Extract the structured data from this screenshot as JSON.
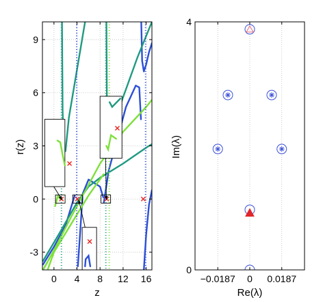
{
  "chart_data": [
    {
      "type": "line",
      "xlabel": "z",
      "ylabel": "r(z)",
      "xlim": [
        -2,
        17
      ],
      "ylim": [
        -4,
        10
      ],
      "xticks": [
        "0",
        "4",
        "8",
        "12",
        "16"
      ],
      "yticks": [
        "-3",
        "0",
        "3",
        "6",
        "9"
      ],
      "grid": "dotted",
      "colors": {
        "blue": "#2b4fd6",
        "teal": "#1f9a80",
        "lime": "#7ee03a",
        "marker": "#e8251f"
      },
      "series": [
        {
          "color": "blue",
          "segments": [
            [
              [
                -1.9,
                -3.7
              ],
              [
                0,
                -2.7
              ],
              [
                2,
                -1.5
              ],
              [
                3.6,
                0.2
              ]
            ],
            [
              [
                4.15,
                -3.8
              ],
              [
                5,
                0.3
              ],
              [
                6,
                1.1
              ],
              [
                8,
                0.7
              ],
              [
                8.55,
                0.1
              ]
            ],
            [
              [
                8.65,
                -0.2
              ],
              [
                9.5,
                1.6
              ],
              [
                11,
                3.4
              ],
              [
                12.5,
                5.2
              ],
              [
                14.2,
                6.4
              ],
              [
                14.8,
                6.3
              ],
              [
                15.1,
                4.5
              ]
            ],
            [
              [
                15.6,
                -4
              ],
              [
                16.0,
                -2.0
              ],
              [
                16.5,
                -0.3
              ],
              [
                17,
                0.5
              ]
            ],
            [
              [
                15.15,
                10
              ],
              [
                15.3,
                7.8
              ],
              [
                15.6,
                7.2
              ],
              [
                16,
                7.6
              ],
              [
                16.5,
                8.3
              ],
              [
                17,
                8.8
              ]
            ]
          ]
        },
        {
          "color": "teal",
          "segments": [
            [
              [
                -1.9,
                -3.5
              ],
              [
                1,
                -1.9
              ],
              [
                4,
                -0.2
              ],
              [
                6,
                0.7
              ],
              [
                8,
                1.2
              ],
              [
                12,
                2.0
              ],
              [
                16,
                2.9
              ],
              [
                17,
                3.1
              ]
            ],
            [
              [
                1.4,
                10
              ],
              [
                1.5,
                5
              ],
              [
                1.7,
                3.0
              ],
              [
                2.0,
                2.7
              ],
              [
                2.6,
                4.6
              ],
              [
                4.0,
                7.3
              ],
              [
                5.4,
                10
              ]
            ],
            [
              [
                9.1,
                10
              ],
              [
                9.2,
                4.6
              ],
              [
                9.6,
                3.5
              ],
              [
                10.3,
                4.0
              ],
              [
                11.5,
                5.3
              ],
              [
                14.5,
                8.0
              ],
              [
                17,
                10
              ]
            ],
            [
              [
                -1.9,
                -4
              ],
              [
                -1.2,
                -3.6
              ]
            ]
          ]
        },
        {
          "color": "lime",
          "segments": [
            [
              [
                -1.9,
                -4
              ],
              [
                0,
                -2.9
              ],
              [
                3,
                -1.0
              ],
              [
                6,
                0.8
              ],
              [
                8,
                2.0
              ],
              [
                12,
                3.8
              ],
              [
                16,
                5.2
              ],
              [
                17,
                5.6
              ]
            ],
            [
              [
                -1.1,
                -4
              ],
              [
                0,
                -3.0
              ],
              [
                3,
                -1.4
              ],
              [
                6,
                0.2
              ],
              [
                8.6,
                1.4
              ]
            ],
            [
              [
                0.2,
                -0.4
              ],
              [
                0.7,
                0.2
              ],
              [
                1.1,
                0.0
              ]
            ]
          ]
        }
      ],
      "dotted_verticals": [
        {
          "color": "teal",
          "x": 1.3
        },
        {
          "color": "blue",
          "x": 3.95
        },
        {
          "color": "teal",
          "x": 9.0
        },
        {
          "color": "lime",
          "x": 9.6
        },
        {
          "color": "blue",
          "x": 15.9
        }
      ],
      "markers": [
        [
          1.3,
          0
        ],
        [
          4.05,
          0
        ],
        [
          9.15,
          0
        ],
        [
          15.5,
          0
        ]
      ],
      "insets": [
        {
          "name": "left",
          "points": [
            [
              0.6,
              3.3
            ],
            [
              1.1,
              3.2
            ],
            [
              1.5,
              2.5
            ],
            [
              1.9,
              1.9
            ]
          ],
          "marker": [
            2.7,
            2.0
          ],
          "target": [
            1.4,
            -0.05
          ]
        },
        {
          "name": "top-right",
          "points": [
            [
              9.1,
              3.0
            ],
            [
              9.4,
              2.8
            ],
            [
              9.9,
              3.6
            ],
            [
              10.8,
              3.4
            ]
          ],
          "marker": [
            11.0,
            4.0
          ],
          "target": [
            9.1,
            -0.05
          ]
        },
        {
          "name": "bottom",
          "points": [
            [
              5.4,
              -3.8
            ],
            [
              5.5,
              -3.4
            ],
            [
              6.0,
              -3.2
            ],
            [
              6.3,
              -3.8
            ]
          ],
          "marker": [
            6.2,
            -2.4
          ],
          "target": [
            4.3,
            -0.05
          ]
        }
      ]
    },
    {
      "type": "scatter",
      "xlabel": "Re(λ)",
      "ylabel": "Im(λ)",
      "xlim": [
        -0.032,
        0.032
      ],
      "ylim": [
        0,
        4
      ],
      "xticks": [
        "−0.0187",
        "0",
        "0.0187"
      ],
      "yticks": [
        "0",
        "4"
      ],
      "grid": "dotted",
      "colors": {
        "circle": "#3a4fd8",
        "star": "#3a4fd8",
        "triangle": "#e0262a",
        "triangle_open": "#e86a78"
      },
      "circles": [
        [
          0,
          0
        ],
        [
          0,
          0.97
        ],
        [
          0,
          3.88
        ],
        [
          -0.0128,
          2.82
        ],
        [
          0.0128,
          2.82
        ],
        [
          -0.0187,
          1.95
        ],
        [
          0.0187,
          1.95
        ]
      ],
      "stars": [
        [
          -0.0128,
          2.82
        ],
        [
          0.0128,
          2.82
        ],
        [
          -0.0187,
          1.95
        ],
        [
          0.0187,
          1.95
        ]
      ],
      "triangles_filled": [
        [
          0,
          0.92
        ]
      ],
      "triangles_open": [
        [
          0,
          3.88
        ]
      ]
    }
  ]
}
